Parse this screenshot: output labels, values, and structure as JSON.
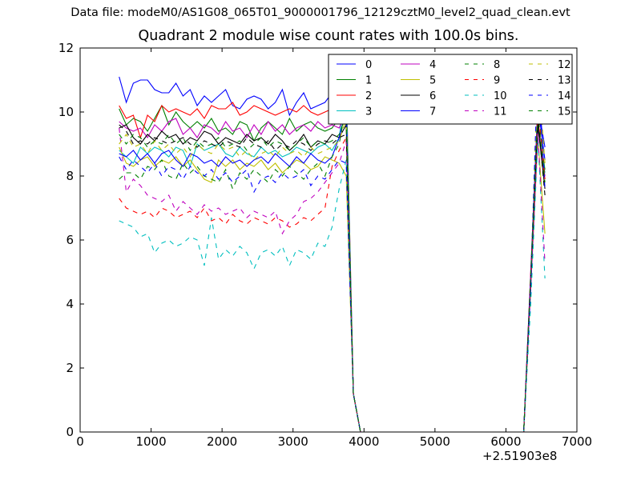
{
  "figure": {
    "suptitle": "Data file: modeM0/AS1G08_065T01_9000001796_12129cztM0_level2_quad_clean.evt",
    "title": "Quadrant 2 module wise count rates with 100.0s bins.",
    "x_offset_label": "+2.51903e8"
  },
  "chart_data": {
    "type": "line",
    "title": "Quadrant 2 module wise count rates with 100.0s bins.",
    "xlabel": "",
    "ylabel": "",
    "xlim": [
      0,
      7000
    ],
    "ylim": [
      0,
      12
    ],
    "xticks": [
      0,
      1000,
      2000,
      3000,
      4000,
      5000,
      6000,
      7000
    ],
    "yticks": [
      0,
      2,
      4,
      6,
      8,
      10,
      12
    ],
    "x_offset": "+2.51903e8",
    "grid": false,
    "legend": {
      "placement": "top-right",
      "columns": 4
    },
    "x": [
      550,
      650,
      750,
      850,
      950,
      1050,
      1150,
      1250,
      1350,
      1450,
      1550,
      1650,
      1750,
      1850,
      1950,
      2050,
      2150,
      2250,
      2350,
      2450,
      2550,
      2650,
      2750,
      2850,
      2950,
      3050,
      3150,
      3250,
      3350,
      3450,
      3550,
      3650,
      3750,
      3850,
      3950,
      4050,
      4150,
      6250,
      6350,
      6450,
      6550
    ],
    "series": [
      {
        "name": "0",
        "color": "#0000ff",
        "dash": "solid",
        "values": [
          11.1,
          10.3,
          10.9,
          11.0,
          11.0,
          10.7,
          10.6,
          10.6,
          10.9,
          10.5,
          10.7,
          10.2,
          10.5,
          10.3,
          10.5,
          10.7,
          10.2,
          10.1,
          10.4,
          10.5,
          10.4,
          10.1,
          10.3,
          10.7,
          9.9,
          10.3,
          10.6,
          10.1,
          10.2,
          10.3,
          10.6,
          10.4,
          10.2,
          1.2,
          0,
          0,
          0,
          0,
          5.0,
          10.2,
          8.9
        ]
      },
      {
        "name": "1",
        "color": "#008000",
        "dash": "solid",
        "values": [
          10.1,
          9.6,
          9.8,
          9.7,
          9.4,
          9.8,
          10.2,
          9.6,
          10.0,
          9.7,
          9.5,
          9.7,
          9.5,
          9.8,
          9.4,
          9.5,
          9.3,
          9.7,
          9.6,
          9.1,
          9.5,
          9.7,
          9.5,
          9.3,
          9.8,
          9.4,
          9.6,
          9.7,
          9.5,
          9.4,
          9.5,
          9.8,
          9.6,
          1.2,
          0,
          0,
          0,
          0,
          4.8,
          9.7,
          8.2
        ]
      },
      {
        "name": "2",
        "color": "#ff0000",
        "dash": "solid",
        "values": [
          10.2,
          9.8,
          9.9,
          9.2,
          9.9,
          9.7,
          10.2,
          10.0,
          10.1,
          10.0,
          9.9,
          10.1,
          9.8,
          10.2,
          10.1,
          10.1,
          10.3,
          9.9,
          10.0,
          10.2,
          10.1,
          10.0,
          9.9,
          10.0,
          10.1,
          10.0,
          10.2,
          10.0,
          9.9,
          10.0,
          10.1,
          9.9,
          11.0,
          1.2,
          0,
          0,
          0,
          0,
          5.0,
          9.8,
          7.9
        ]
      },
      {
        "name": "3",
        "color": "#00bfbf",
        "dash": "solid",
        "values": [
          8.8,
          8.6,
          8.4,
          8.9,
          8.7,
          8.9,
          8.8,
          8.6,
          8.9,
          8.8,
          8.3,
          9.0,
          8.8,
          8.9,
          9.0,
          8.7,
          8.6,
          8.9,
          8.7,
          8.6,
          8.9,
          8.7,
          8.8,
          8.6,
          8.7,
          8.9,
          8.8,
          8.7,
          8.9,
          9.0,
          8.8,
          9.2,
          10.8,
          1.2,
          0,
          0,
          0,
          0,
          4.6,
          9.6,
          8.1
        ]
      },
      {
        "name": "4",
        "color": "#bf00bf",
        "dash": "solid",
        "values": [
          9.7,
          9.5,
          9.4,
          9.5,
          9.2,
          9.6,
          9.4,
          9.7,
          9.8,
          9.3,
          9.5,
          9.2,
          9.6,
          9.5,
          9.3,
          9.7,
          9.4,
          9.5,
          9.2,
          9.6,
          9.3,
          9.7,
          9.4,
          9.6,
          9.3,
          9.5,
          9.6,
          9.4,
          9.7,
          9.5,
          9.6,
          9.5,
          10.0,
          1.2,
          0,
          0,
          0,
          0,
          4.9,
          9.5,
          8.0
        ]
      },
      {
        "name": "5",
        "color": "#bfbf00",
        "dash": "solid",
        "values": [
          8.9,
          8.4,
          8.3,
          8.5,
          8.6,
          8.3,
          8.5,
          8.4,
          8.6,
          8.3,
          8.5,
          8.2,
          7.9,
          7.8,
          8.5,
          8.3,
          8.5,
          8.2,
          8.4,
          8.3,
          8.5,
          8.2,
          8.4,
          8.1,
          8.3,
          8.5,
          8.4,
          8.2,
          8.3,
          8.6,
          8.5,
          8.4,
          8.0,
          1.2,
          0,
          0,
          0,
          0,
          4.5,
          9.2,
          6.2
        ]
      },
      {
        "name": "6",
        "color": "#000000",
        "dash": "solid",
        "values": [
          9.5,
          9.6,
          9.2,
          9.0,
          9.3,
          9.1,
          9.4,
          9.2,
          9.3,
          9.0,
          9.2,
          9.1,
          9.4,
          9.3,
          9.0,
          9.2,
          9.1,
          9.0,
          9.3,
          9.1,
          9.2,
          9.0,
          9.3,
          9.1,
          8.8,
          9.0,
          9.3,
          8.9,
          9.1,
          9.0,
          9.3,
          9.2,
          9.6,
          1.2,
          0,
          0,
          0,
          0,
          4.7,
          9.6,
          7.6
        ]
      },
      {
        "name": "7",
        "color": "#0000ff",
        "dash": "solid",
        "values": [
          8.7,
          8.6,
          8.8,
          8.5,
          8.7,
          8.4,
          8.7,
          8.8,
          8.5,
          8.3,
          8.7,
          8.6,
          8.4,
          8.5,
          8.3,
          8.6,
          8.4,
          8.5,
          8.3,
          8.5,
          8.6,
          8.4,
          8.7,
          8.5,
          8.3,
          8.6,
          8.4,
          8.7,
          8.5,
          8.4,
          8.6,
          9.2,
          10.1,
          1.2,
          0,
          0,
          0,
          0,
          4.8,
          10.2,
          8.5
        ]
      },
      {
        "name": "8",
        "color": "#008000",
        "dash": "dashed",
        "values": [
          7.9,
          8.1,
          8.1,
          7.9,
          8.3,
          8.2,
          8.5,
          8.0,
          7.9,
          8.4,
          8.1,
          8.3,
          8.0,
          7.9,
          7.8,
          8.2,
          7.6,
          8.1,
          7.9,
          8.2,
          8.0,
          7.8,
          8.2,
          8.0,
          8.3,
          8.1,
          7.9,
          8.2,
          8.4,
          8.0,
          8.6,
          9.0,
          10.2,
          1.2,
          0,
          0,
          0,
          0,
          4.5,
          10.3,
          8.0
        ]
      },
      {
        "name": "9",
        "color": "#ff0000",
        "dash": "dashed",
        "values": [
          7.3,
          7.0,
          6.9,
          6.8,
          6.9,
          6.7,
          7.0,
          6.9,
          6.7,
          6.8,
          6.9,
          6.7,
          7.0,
          6.6,
          6.7,
          6.5,
          6.8,
          6.6,
          6.5,
          6.7,
          6.6,
          6.5,
          6.7,
          6.6,
          6.4,
          6.5,
          6.7,
          6.6,
          6.8,
          7.0,
          8.3,
          8.8,
          9.2,
          1.2,
          0,
          0,
          0,
          0,
          4.6,
          10.2,
          7.9
        ]
      },
      {
        "name": "10",
        "color": "#00bfbf",
        "dash": "dashed",
        "values": [
          6.6,
          6.5,
          6.4,
          6.1,
          6.2,
          5.6,
          5.9,
          6.0,
          5.8,
          5.9,
          6.1,
          6.0,
          5.2,
          6.7,
          5.4,
          5.7,
          5.5,
          5.8,
          5.6,
          5.1,
          5.6,
          5.7,
          5.5,
          5.8,
          5.2,
          5.7,
          5.6,
          5.4,
          5.9,
          5.8,
          6.4,
          7.6,
          8.5,
          1.2,
          0,
          0,
          0,
          0,
          4.0,
          9.2,
          4.8
        ]
      },
      {
        "name": "11",
        "color": "#bf00bf",
        "dash": "dashed",
        "values": [
          9.5,
          7.5,
          7.9,
          7.7,
          7.4,
          7.3,
          7.2,
          7.4,
          6.9,
          7.2,
          7.0,
          6.8,
          7.1,
          6.9,
          7.0,
          6.8,
          6.9,
          7.0,
          6.7,
          6.9,
          6.8,
          6.7,
          6.9,
          6.2,
          6.6,
          6.8,
          7.2,
          7.3,
          7.5,
          7.8,
          8.1,
          8.4,
          9.1,
          1.2,
          0,
          0,
          0,
          0,
          4.5,
          9.3,
          5.3
        ]
      },
      {
        "name": "12",
        "color": "#bfbf00",
        "dash": "dashed",
        "values": [
          9.0,
          9.3,
          8.9,
          9.0,
          8.7,
          9.1,
          8.8,
          9.0,
          8.7,
          8.9,
          8.6,
          9.0,
          8.8,
          8.7,
          9.0,
          8.8,
          8.9,
          8.6,
          8.8,
          8.5,
          8.7,
          8.8,
          8.6,
          8.9,
          8.7,
          8.8,
          8.6,
          8.9,
          8.7,
          8.8,
          8.9,
          9.1,
          9.8,
          1.2,
          0,
          0,
          0,
          0,
          4.7,
          11.5,
          8.4
        ]
      },
      {
        "name": "13",
        "color": "#000000",
        "dash": "dashed",
        "values": [
          9.6,
          9.4,
          9.0,
          9.1,
          9.0,
          9.2,
          9.1,
          9.0,
          9.1,
          9.2,
          9.0,
          8.9,
          9.1,
          9.0,
          8.9,
          9.1,
          9.0,
          8.9,
          9.2,
          9.0,
          8.9,
          9.1,
          8.8,
          9.0,
          8.9,
          9.1,
          9.0,
          8.8,
          9.0,
          9.1,
          9.0,
          9.2,
          9.3,
          1.2,
          0,
          0,
          0,
          0,
          4.8,
          9.8,
          7.4
        ]
      },
      {
        "name": "14",
        "color": "#0000ff",
        "dash": "dashed",
        "values": [
          8.6,
          8.2,
          8.5,
          8.3,
          8.1,
          8.4,
          8.0,
          8.3,
          8.2,
          7.9,
          8.3,
          8.1,
          8.0,
          8.2,
          7.9,
          8.1,
          7.8,
          8.0,
          8.2,
          7.5,
          7.9,
          8.0,
          7.8,
          8.1,
          7.9,
          8.0,
          8.2,
          7.7,
          8.0,
          7.9,
          8.2,
          8.5,
          8.4,
          1.2,
          0,
          0,
          0,
          0,
          4.6,
          11.6,
          7.6
        ]
      },
      {
        "name": "15",
        "color": "#008000",
        "dash": "dashed",
        "values": [
          9.3,
          9.0,
          9.3,
          9.2,
          8.9,
          9.1,
          9.0,
          9.3,
          9.0,
          9.2,
          8.8,
          9.1,
          8.9,
          9.0,
          9.2,
          8.9,
          9.0,
          9.1,
          8.8,
          9.0,
          9.2,
          8.9,
          9.1,
          9.0,
          8.8,
          9.0,
          9.2,
          8.9,
          9.1,
          9.0,
          9.1,
          9.3,
          9.9,
          1.2,
          0,
          0,
          0,
          0,
          4.9,
          10.0,
          7.8
        ]
      }
    ]
  }
}
